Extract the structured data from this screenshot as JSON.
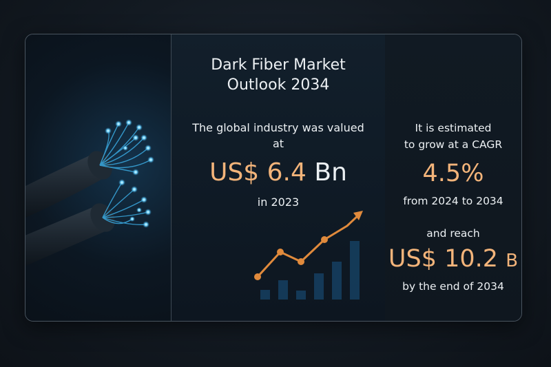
{
  "title_line1": "Dark Fiber Market",
  "title_line2": "Outlook 2034",
  "valued_line1": "The global industry was valued",
  "valued_line2": "at",
  "value_prefix": "US$",
  "value_number": "6.4",
  "value_unit": "Bn",
  "value_year": "in 2023",
  "estimate_line1": "It is estimated",
  "estimate_line2": "to grow at a CAGR",
  "cagr": "4.5%",
  "period": "from 2024 to 2034",
  "reach_label": "and reach",
  "reach_value": "US$ 10.2",
  "reach_unit": "B",
  "reach_suffix": "by the end of 2034",
  "colors": {
    "accent": "#f3b47a",
    "text": "#ecf0f3",
    "fiber_glow": "#6fd3ff",
    "trend": "#e08a3c"
  },
  "icons": {
    "left_image": "fiber-optic-cable-illustration",
    "mid_graphic": "growth-trend-chart-icon"
  }
}
